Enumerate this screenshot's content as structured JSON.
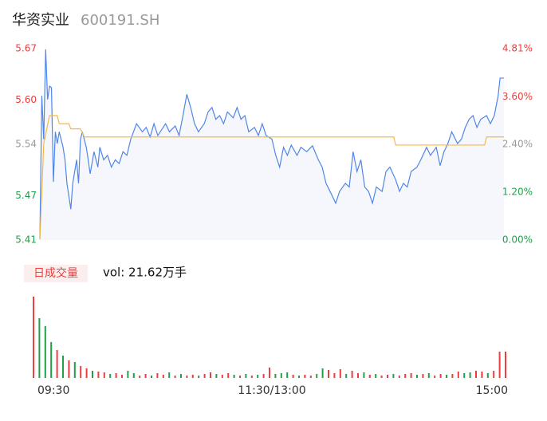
{
  "chart_data": {
    "type": "line",
    "title": "华资实业",
    "subtitle": "600191.SH",
    "xlim": [
      0,
      240
    ],
    "xticks": [
      {
        "value": 0,
        "label": "09:30"
      },
      {
        "value": 120,
        "label": "11:30/13:00"
      },
      {
        "value": 240,
        "label": "15:00"
      }
    ],
    "ylim": [
      5.41,
      5.67
    ],
    "yticks": [
      5.67,
      5.6,
      5.54,
      5.47,
      5.41
    ],
    "ytick_labels": [
      "5.67",
      "5.60",
      "5.54",
      "5.47",
      "5.41"
    ],
    "ytick_colors": [
      "#f03c3c",
      "#f03c3c",
      "#999999",
      "#21a04a",
      "#21a04a"
    ],
    "y2lim": [
      0,
      4.81
    ],
    "y2ticks": [
      {
        "value": 4.81,
        "label": "4.81%"
      },
      {
        "value": 3.6,
        "label": "3.60%"
      },
      {
        "value": 2.4,
        "label": "2.40%"
      },
      {
        "value": 1.2,
        "label": "1.20%"
      },
      {
        "value": 0,
        "label": "0.00%"
      }
    ],
    "area_color": "#f5f7fd",
    "series": [
      {
        "color": "#4f86e8",
        "x": [
          0,
          1,
          2,
          3,
          4,
          5,
          6,
          7,
          8,
          9,
          10,
          12,
          13,
          14,
          16,
          17,
          19,
          20,
          21,
          22,
          24,
          25,
          26,
          28,
          30,
          31,
          33,
          35,
          37,
          39,
          41,
          43,
          45,
          47,
          50,
          53,
          55,
          57,
          59,
          61,
          63,
          65,
          67,
          70,
          72,
          74,
          76,
          78,
          80,
          82,
          85,
          87,
          89,
          91,
          93,
          95,
          97,
          100,
          102,
          104,
          106,
          108,
          111,
          113,
          115,
          117,
          120,
          122,
          124,
          126,
          128,
          130,
          133,
          135,
          138,
          141,
          144,
          146,
          148,
          151,
          153,
          155,
          158,
          160,
          162,
          164,
          166,
          168,
          170,
          172,
          174,
          177,
          179,
          181,
          184,
          186,
          188,
          190,
          192,
          195,
          197,
          200,
          202,
          205,
          207,
          209,
          211,
          213,
          216,
          218,
          220,
          222,
          224,
          226,
          228,
          231,
          233,
          235,
          237,
          238,
          240
        ],
        "values": [
          5.411,
          5.606,
          5.547,
          5.669,
          5.601,
          5.619,
          5.617,
          5.489,
          5.557,
          5.541,
          5.557,
          5.536,
          5.519,
          5.487,
          5.452,
          5.487,
          5.519,
          5.487,
          5.547,
          5.557,
          5.536,
          5.519,
          5.5,
          5.53,
          5.509,
          5.536,
          5.519,
          5.525,
          5.509,
          5.519,
          5.514,
          5.53,
          5.525,
          5.547,
          5.568,
          5.557,
          5.563,
          5.55,
          5.568,
          5.552,
          5.56,
          5.568,
          5.557,
          5.565,
          5.552,
          5.579,
          5.608,
          5.59,
          5.568,
          5.557,
          5.568,
          5.584,
          5.59,
          5.574,
          5.579,
          5.568,
          5.584,
          5.576,
          5.59,
          5.574,
          5.579,
          5.557,
          5.563,
          5.552,
          5.568,
          5.552,
          5.547,
          5.525,
          5.509,
          5.536,
          5.525,
          5.539,
          5.525,
          5.536,
          5.53,
          5.538,
          5.519,
          5.509,
          5.487,
          5.471,
          5.46,
          5.476,
          5.487,
          5.482,
          5.53,
          5.503,
          5.519,
          5.482,
          5.476,
          5.46,
          5.482,
          5.476,
          5.503,
          5.509,
          5.492,
          5.476,
          5.487,
          5.482,
          5.503,
          5.509,
          5.519,
          5.536,
          5.525,
          5.536,
          5.511,
          5.53,
          5.541,
          5.557,
          5.541,
          5.547,
          5.563,
          5.574,
          5.579,
          5.563,
          5.574,
          5.579,
          5.568,
          5.579,
          5.606,
          5.63,
          5.63
        ]
      },
      {
        "color": "#f5b942",
        "x": [
          0,
          2,
          5,
          9,
          10,
          15,
          16,
          21,
          23,
          183,
          184,
          230,
          231,
          240
        ],
        "values": [
          5.411,
          5.541,
          5.579,
          5.579,
          5.568,
          5.568,
          5.561,
          5.561,
          5.55,
          5.55,
          5.539,
          5.539,
          5.55,
          5.55
        ]
      }
    ],
    "volume": {
      "label": "日成交量",
      "text": "vol: 21.62万手",
      "ylim": [
        0,
        10200
      ],
      "x": [
        0,
        3,
        6,
        9,
        12,
        15,
        18,
        21,
        24,
        27,
        30,
        33,
        36,
        39,
        42,
        45,
        48,
        51,
        54,
        57,
        60,
        63,
        66,
        69,
        72,
        75,
        78,
        81,
        84,
        87,
        90,
        93,
        96,
        99,
        102,
        105,
        108,
        111,
        114,
        117,
        120,
        123,
        126,
        129,
        132,
        135,
        138,
        141,
        144,
        147,
        150,
        153,
        156,
        159,
        162,
        165,
        168,
        171,
        174,
        177,
        180,
        183,
        186,
        189,
        192,
        195,
        198,
        201,
        204,
        207,
        210,
        213,
        216,
        219,
        222,
        225,
        228,
        231,
        234,
        237,
        240
      ],
      "values": [
        10200,
        7500,
        6500,
        4500,
        3500,
        2800,
        2200,
        2000,
        1500,
        1200,
        900,
        800,
        700,
        500,
        600,
        400,
        900,
        600,
        300,
        500,
        300,
        600,
        400,
        700,
        300,
        500,
        300,
        400,
        300,
        500,
        700,
        500,
        400,
        600,
        400,
        300,
        500,
        300,
        400,
        500,
        1300,
        500,
        600,
        700,
        400,
        300,
        400,
        300,
        500,
        1200,
        1000,
        600,
        1100,
        500,
        900,
        600,
        700,
        400,
        500,
        300,
        400,
        500,
        300,
        500,
        600,
        400,
        500,
        600,
        300,
        500,
        400,
        500,
        800,
        600,
        700,
        900,
        800,
        600,
        900,
        3300,
        3300
      ],
      "colors": [
        "#f03c3c",
        "#21a04a",
        "#21a04a",
        "#21a04a",
        "#f03c3c",
        "#21a04a",
        "#f03c3c",
        "#21a04a",
        "#f03c3c",
        "#f03c3c",
        "#21a04a",
        "#f03c3c",
        "#f03c3c",
        "#21a04a",
        "#f03c3c",
        "#f03c3c",
        "#21a04a",
        "#21a04a",
        "#f03c3c",
        "#f03c3c",
        "#21a04a",
        "#f03c3c",
        "#f03c3c",
        "#21a04a",
        "#f03c3c",
        "#21a04a",
        "#f03c3c",
        "#f03c3c",
        "#21a04a",
        "#f03c3c",
        "#f03c3c",
        "#21a04a",
        "#f03c3c",
        "#f03c3c",
        "#21a04a",
        "#f03c3c",
        "#21a04a",
        "#f03c3c",
        "#21a04a",
        "#f03c3c",
        "#f03c3c",
        "#21a04a",
        "#21a04a",
        "#21a04a",
        "#f03c3c",
        "#21a04a",
        "#f03c3c",
        "#f03c3c",
        "#21a04a",
        "#21a04a",
        "#f03c3c",
        "#f03c3c",
        "#f03c3c",
        "#21a04a",
        "#f03c3c",
        "#f03c3c",
        "#21a04a",
        "#f03c3c",
        "#21a04a",
        "#f03c3c",
        "#f03c3c",
        "#21a04a",
        "#f03c3c",
        "#f03c3c",
        "#f03c3c",
        "#21a04a",
        "#f03c3c",
        "#21a04a",
        "#f03c3c",
        "#f03c3c",
        "#21a04a",
        "#f03c3c",
        "#f03c3c",
        "#21a04a",
        "#21a04a",
        "#f03c3c",
        "#f03c3c",
        "#21a04a",
        "#f03c3c",
        "#f03c3c",
        "#f03c3c"
      ]
    }
  }
}
